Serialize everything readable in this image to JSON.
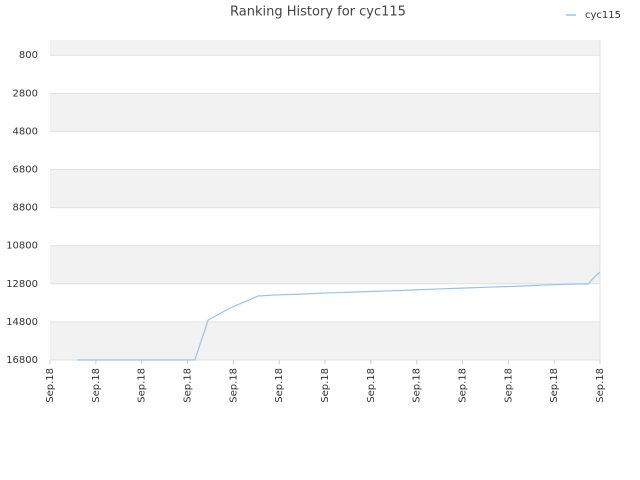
{
  "chart_data": {
    "type": "line",
    "title": "Ranking History for cyc115",
    "x": [
      0.59,
      3.16,
      3.45,
      3.93,
      4.54,
      4.89,
      5.45,
      6.07,
      6.68,
      7.27,
      7.85,
      8.47,
      9.06,
      9.64,
      10.26,
      10.84,
      11.46,
      11.74,
      11.9,
      12
    ],
    "series": [
      {
        "name": "cyc115",
        "color": "#92c5f0",
        "values": [
          16800,
          16800,
          14700,
          14070,
          13440,
          13390,
          13340,
          13280,
          13230,
          13180,
          13130,
          13070,
          13020,
          12970,
          12920,
          12860,
          12810,
          12810,
          12390,
          12180
        ]
      }
    ],
    "xlim": [
      0,
      12
    ],
    "xticks": [
      {
        "value": 0,
        "label": "Sep.18"
      },
      {
        "value": 1,
        "label": "Sep.18"
      },
      {
        "value": 2,
        "label": "Sep.18"
      },
      {
        "value": 3,
        "label": "Sep.18"
      },
      {
        "value": 4,
        "label": "Sep.18"
      },
      {
        "value": 5,
        "label": "Sep.18"
      },
      {
        "value": 6,
        "label": "Sep.18"
      },
      {
        "value": 7,
        "label": "Sep.18"
      },
      {
        "value": 8,
        "label": "Sep.18"
      },
      {
        "value": 9,
        "label": "Sep.18"
      },
      {
        "value": 10,
        "label": "Sep.18"
      },
      {
        "value": 11,
        "label": "Sep.18"
      },
      {
        "value": 12,
        "label": "Sep.18"
      }
    ],
    "ylim": [
      0,
      16800
    ],
    "y_inverted": true,
    "yticks": [
      800,
      2800,
      4800,
      6800,
      8800,
      10800,
      12800,
      14800,
      16800
    ],
    "grid": true,
    "legend": "top-right"
  }
}
